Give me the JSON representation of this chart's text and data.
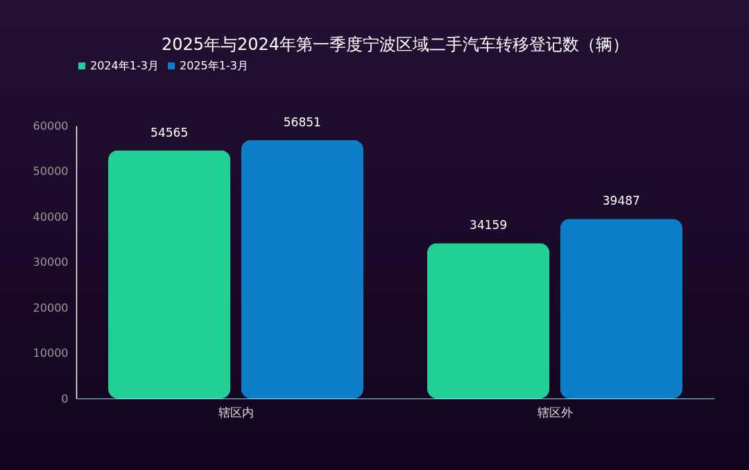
{
  "chart_data": {
    "type": "bar",
    "title": "2025年与2024年第一季度宁波区域二手汽车转移登记数（辆）",
    "categories": [
      "辖区内",
      "辖区外"
    ],
    "series": [
      {
        "name": "2024年1-3月",
        "color": "#22cf95",
        "values": [
          54565,
          34159
        ]
      },
      {
        "name": "2025年1-3月",
        "color": "#0d7fc8",
        "values": [
          56851,
          39487
        ]
      }
    ],
    "ylim": [
      0,
      60000
    ],
    "yticks": [
      0,
      10000,
      20000,
      30000,
      40000,
      50000,
      60000
    ],
    "grid": false,
    "legend": "top",
    "data_labels": true
  }
}
